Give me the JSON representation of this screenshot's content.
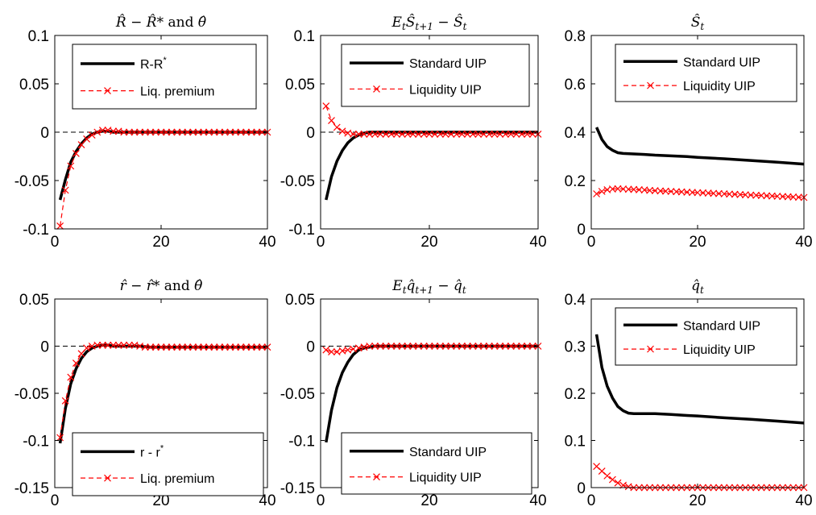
{
  "chart_data": [
    {
      "type": "line",
      "title": "R̂ − R̂* and θ̂",
      "xlim": [
        0,
        40
      ],
      "ylim": [
        -0.1,
        0.1
      ],
      "xticks": [
        "0",
        "20",
        "40"
      ],
      "yticks": [
        "-0.1",
        "-0.05",
        "0",
        "0.05",
        "0.1"
      ],
      "zero_line": true,
      "grid": false,
      "legend": "top-right",
      "series": [
        {
          "name": "R-R*",
          "color": "#000000",
          "style": "solid",
          "x": [
            1,
            2,
            3,
            4,
            5,
            6,
            7,
            8,
            9,
            10,
            11,
            12,
            14,
            16,
            18,
            20,
            25,
            30,
            35,
            40
          ],
          "y": [
            -0.07,
            -0.049,
            -0.031,
            -0.02,
            -0.012,
            -0.006,
            -0.002,
            0.0,
            0.001,
            0.001,
            0.0,
            0.0,
            0.0,
            0.0,
            0.0,
            0.0,
            0.0,
            0.0,
            0.0,
            0.0
          ]
        },
        {
          "name": "Liq. premium",
          "color": "#ff0000",
          "style": "dashed",
          "marker": "x",
          "x": [
            1,
            2,
            3,
            4,
            5,
            6,
            7,
            8,
            9,
            10,
            11,
            12,
            13,
            14,
            15,
            16,
            17,
            18,
            19,
            20,
            21,
            22,
            23,
            24,
            25,
            26,
            27,
            28,
            29,
            30,
            31,
            32,
            33,
            34,
            35,
            36,
            37,
            38,
            39,
            40
          ],
          "y": [
            -0.097,
            -0.06,
            -0.035,
            -0.022,
            -0.013,
            -0.007,
            -0.003,
            0.0,
            0.002,
            0.002,
            0.001,
            0.001,
            0.0,
            0.0,
            0.0,
            0.0,
            0.0,
            0.0,
            0.0,
            0.0,
            0.0,
            0.0,
            0.0,
            0.0,
            0.0,
            0.0,
            0.0,
            0.0,
            0.0,
            0.0,
            0.0,
            0.0,
            0.0,
            0.0,
            0.0,
            0.0,
            0.0,
            0.0,
            0.0,
            0.0
          ]
        }
      ]
    },
    {
      "type": "line",
      "title": "EtŜt+1 − Ŝt",
      "xlim": [
        0,
        40
      ],
      "ylim": [
        -0.1,
        0.1
      ],
      "xticks": [
        "0",
        "20",
        "40"
      ],
      "yticks": [
        "-0.1",
        "-0.05",
        "0",
        "0.05",
        "0.1"
      ],
      "zero_line": true,
      "grid": false,
      "legend": "top-right",
      "series": [
        {
          "name": "Standard UIP",
          "color": "#000000",
          "style": "solid",
          "x": [
            1,
            2,
            3,
            4,
            5,
            6,
            7,
            8,
            9,
            10,
            11,
            12,
            14,
            16,
            18,
            20,
            25,
            30,
            35,
            40
          ],
          "y": [
            -0.07,
            -0.046,
            -0.03,
            -0.019,
            -0.011,
            -0.006,
            -0.003,
            -0.001,
            0.0,
            0.0,
            0.0,
            0.0,
            0.0,
            0.0,
            0.0,
            0.0,
            0.0,
            0.0,
            0.0,
            0.0
          ]
        },
        {
          "name": "Liquidity UIP",
          "color": "#ff0000",
          "style": "dashed",
          "marker": "x",
          "x": [
            1,
            2,
            3,
            4,
            5,
            6,
            7,
            8,
            9,
            10,
            11,
            12,
            13,
            14,
            15,
            16,
            17,
            18,
            19,
            20,
            21,
            22,
            23,
            24,
            25,
            26,
            27,
            28,
            29,
            30,
            31,
            32,
            33,
            34,
            35,
            36,
            37,
            38,
            39,
            40
          ],
          "y": [
            0.027,
            0.012,
            0.005,
            0.001,
            -0.001,
            -0.002,
            -0.002,
            -0.002,
            -0.002,
            -0.002,
            -0.002,
            -0.002,
            -0.002,
            -0.002,
            -0.002,
            -0.002,
            -0.002,
            -0.002,
            -0.002,
            -0.002,
            -0.002,
            -0.002,
            -0.002,
            -0.002,
            -0.002,
            -0.002,
            -0.002,
            -0.002,
            -0.002,
            -0.002,
            -0.002,
            -0.002,
            -0.002,
            -0.002,
            -0.002,
            -0.002,
            -0.002,
            -0.002,
            -0.002,
            -0.002
          ]
        }
      ]
    },
    {
      "type": "line",
      "title": "Ŝt",
      "xlim": [
        0,
        40
      ],
      "ylim": [
        0,
        0.8
      ],
      "xticks": [
        "0",
        "20",
        "40"
      ],
      "yticks": [
        "0",
        "0.2",
        "0.4",
        "0.6",
        "0.8"
      ],
      "zero_line": false,
      "grid": false,
      "legend": "top-right",
      "series": [
        {
          "name": "Standard UIP",
          "color": "#000000",
          "style": "solid",
          "x": [
            1,
            2,
            3,
            4,
            5,
            6,
            8,
            10,
            12,
            15,
            18,
            20,
            25,
            30,
            35,
            40
          ],
          "y": [
            0.42,
            0.37,
            0.34,
            0.325,
            0.315,
            0.312,
            0.31,
            0.308,
            0.305,
            0.302,
            0.299,
            0.296,
            0.29,
            0.283,
            0.276,
            0.268
          ]
        },
        {
          "name": "Liquidity UIP",
          "color": "#ff0000",
          "style": "dashed",
          "marker": "x",
          "x": [
            1,
            2,
            3,
            4,
            5,
            6,
            7,
            8,
            9,
            10,
            11,
            12,
            13,
            14,
            15,
            16,
            17,
            18,
            19,
            20,
            21,
            22,
            23,
            24,
            25,
            26,
            27,
            28,
            29,
            30,
            31,
            32,
            33,
            34,
            35,
            36,
            37,
            38,
            39,
            40
          ],
          "y": [
            0.145,
            0.155,
            0.162,
            0.165,
            0.166,
            0.165,
            0.164,
            0.163,
            0.162,
            0.161,
            0.159,
            0.158,
            0.157,
            0.156,
            0.155,
            0.154,
            0.153,
            0.152,
            0.151,
            0.15,
            0.149,
            0.148,
            0.147,
            0.146,
            0.145,
            0.144,
            0.143,
            0.142,
            0.141,
            0.14,
            0.139,
            0.138,
            0.137,
            0.136,
            0.135,
            0.134,
            0.133,
            0.132,
            0.131,
            0.13
          ]
        }
      ]
    },
    {
      "type": "line",
      "title": "r̂ − r̂* and θ̂",
      "xlim": [
        0,
        40
      ],
      "ylim": [
        -0.15,
        0.05
      ],
      "xticks": [
        "0",
        "20",
        "40"
      ],
      "yticks": [
        "-0.15",
        "-0.1",
        "-0.05",
        "0",
        "0.05"
      ],
      "zero_line": true,
      "grid": false,
      "legend": "bottom-right",
      "series": [
        {
          "name": "r - r*",
          "color": "#000000",
          "style": "solid",
          "x": [
            1,
            2,
            3,
            4,
            5,
            6,
            7,
            8,
            9,
            10,
            11,
            12,
            14,
            16,
            18,
            20,
            25,
            30,
            35,
            40
          ],
          "y": [
            -0.103,
            -0.066,
            -0.04,
            -0.024,
            -0.013,
            -0.006,
            -0.002,
            0.0,
            0.001,
            0.001,
            0.0,
            0.0,
            0.0,
            0.0,
            -0.001,
            -0.001,
            -0.001,
            -0.001,
            -0.001,
            -0.001
          ]
        },
        {
          "name": "Liq. premium",
          "color": "#ff0000",
          "style": "dashed",
          "marker": "x",
          "x": [
            1,
            2,
            3,
            4,
            5,
            6,
            7,
            8,
            9,
            10,
            11,
            12,
            13,
            14,
            15,
            16,
            17,
            18,
            19,
            20,
            21,
            22,
            23,
            24,
            25,
            26,
            27,
            28,
            29,
            30,
            31,
            32,
            33,
            34,
            35,
            36,
            37,
            38,
            39,
            40
          ],
          "y": [
            -0.097,
            -0.058,
            -0.033,
            -0.018,
            -0.008,
            -0.002,
            0.0,
            0.001,
            0.001,
            0.001,
            0.001,
            0.001,
            0.001,
            0.001,
            0.001,
            0.0,
            -0.001,
            -0.001,
            -0.001,
            -0.001,
            -0.001,
            -0.001,
            -0.001,
            -0.001,
            -0.001,
            -0.001,
            -0.001,
            -0.001,
            -0.001,
            -0.001,
            -0.001,
            -0.001,
            -0.001,
            -0.001,
            -0.001,
            -0.001,
            -0.001,
            -0.001,
            -0.001,
            -0.001
          ]
        }
      ]
    },
    {
      "type": "line",
      "title": "Etq̂t+1 − q̂t",
      "xlim": [
        0,
        40
      ],
      "ylim": [
        -0.15,
        0.05
      ],
      "xticks": [
        "0",
        "20",
        "40"
      ],
      "yticks": [
        "-0.15",
        "-0.1",
        "-0.05",
        "0",
        "0.05"
      ],
      "zero_line": true,
      "grid": false,
      "legend": "bottom-right",
      "series": [
        {
          "name": "Standard UIP",
          "color": "#000000",
          "style": "solid",
          "x": [
            1,
            2,
            3,
            4,
            5,
            6,
            7,
            8,
            9,
            10,
            11,
            12,
            14,
            16,
            18,
            20,
            25,
            30,
            35,
            40
          ],
          "y": [
            -0.102,
            -0.068,
            -0.044,
            -0.028,
            -0.017,
            -0.009,
            -0.004,
            -0.002,
            -0.001,
            0.0,
            0.0,
            0.0,
            0.0,
            0.0,
            0.0,
            0.0,
            0.0,
            0.0,
            0.0,
            0.0
          ]
        },
        {
          "name": "Liquidity UIP",
          "color": "#ff0000",
          "style": "dashed",
          "marker": "x",
          "x": [
            1,
            2,
            3,
            4,
            5,
            6,
            7,
            8,
            9,
            10,
            11,
            12,
            13,
            14,
            15,
            16,
            17,
            18,
            19,
            20,
            21,
            22,
            23,
            24,
            25,
            26,
            27,
            28,
            29,
            30,
            31,
            32,
            33,
            34,
            35,
            36,
            37,
            38,
            39,
            40
          ],
          "y": [
            -0.004,
            -0.006,
            -0.006,
            -0.005,
            -0.004,
            -0.003,
            -0.002,
            -0.001,
            0.0,
            0.0,
            0.0,
            0.0,
            0.0,
            0.0,
            0.0,
            0.0,
            0.0,
            0.0,
            0.0,
            0.0,
            0.0,
            0.0,
            0.0,
            0.0,
            0.0,
            0.0,
            0.0,
            0.0,
            0.0,
            0.0,
            0.0,
            0.0,
            0.0,
            0.0,
            0.0,
            0.0,
            0.0,
            0.0,
            0.0,
            0.0
          ]
        }
      ]
    },
    {
      "type": "line",
      "title": "q̂t",
      "xlim": [
        0,
        40
      ],
      "ylim": [
        0,
        0.4
      ],
      "xticks": [
        "0",
        "20",
        "40"
      ],
      "yticks": [
        "0",
        "0.1",
        "0.2",
        "0.3",
        "0.4"
      ],
      "zero_line": false,
      "grid": false,
      "legend": "top-right",
      "series": [
        {
          "name": "Standard UIP",
          "color": "#000000",
          "style": "solid",
          "x": [
            1,
            2,
            3,
            4,
            5,
            6,
            7,
            8,
            10,
            12,
            15,
            18,
            20,
            25,
            30,
            35,
            40
          ],
          "y": [
            0.325,
            0.255,
            0.215,
            0.19,
            0.172,
            0.163,
            0.158,
            0.157,
            0.157,
            0.157,
            0.155,
            0.153,
            0.152,
            0.148,
            0.145,
            0.141,
            0.137
          ]
        },
        {
          "name": "Liquidity UIP",
          "color": "#ff0000",
          "style": "dashed",
          "marker": "x",
          "x": [
            1,
            2,
            3,
            4,
            5,
            6,
            7,
            8,
            9,
            10,
            11,
            12,
            13,
            14,
            15,
            16,
            17,
            18,
            19,
            20,
            21,
            22,
            23,
            24,
            25,
            26,
            27,
            28,
            29,
            30,
            31,
            32,
            33,
            34,
            35,
            36,
            37,
            38,
            39,
            40
          ],
          "y": [
            0.045,
            0.035,
            0.025,
            0.017,
            0.01,
            0.005,
            0.002,
            0.0,
            0.0,
            0.0,
            0.0,
            0.0,
            0.0,
            0.0,
            0.0,
            0.0,
            0.0,
            0.0,
            0.0,
            0.0,
            0.0,
            0.0,
            0.0,
            0.0,
            0.0,
            0.0,
            0.0,
            0.0,
            0.0,
            0.0,
            0.0,
            0.0,
            0.0,
            0.0,
            0.0,
            0.0,
            0.0,
            0.0,
            0.0,
            0.0
          ]
        }
      ]
    }
  ]
}
